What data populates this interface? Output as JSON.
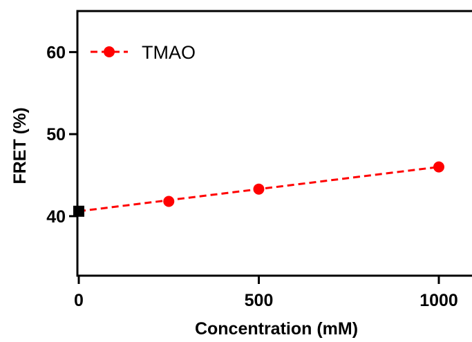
{
  "chart_data": {
    "type": "scatter",
    "xlabel": "Concentration (mM)",
    "ylabel": "FRET (%)",
    "xlim": [
      0,
      1000
    ],
    "ylim": [
      33,
      65
    ],
    "xticks": [
      0,
      500,
      1000
    ],
    "yticks": [
      40,
      50,
      60
    ],
    "grid": false,
    "legend": "top-left",
    "series": [
      {
        "name": "TMAO",
        "color": "#ff0000",
        "marker": "circle",
        "line": "dashed",
        "x": [
          250,
          500,
          1000
        ],
        "y": [
          41.8,
          43.3,
          46.0
        ]
      },
      {
        "name": "",
        "color": "#000000",
        "marker": "square",
        "line": "none",
        "x": [
          0
        ],
        "y": [
          40.6
        ]
      }
    ],
    "fit_line": {
      "color": "#ff0000",
      "style": "dashed",
      "x": [
        0,
        1000
      ],
      "y": [
        40.6,
        46.0
      ]
    }
  }
}
